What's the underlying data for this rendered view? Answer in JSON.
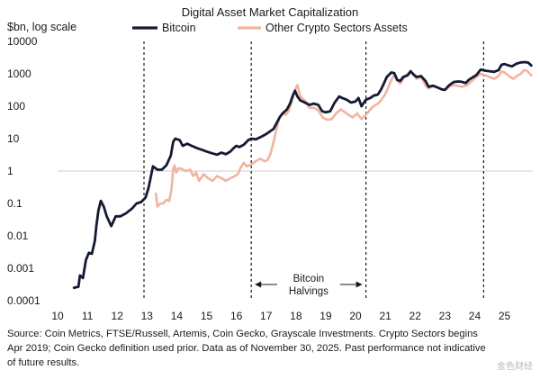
{
  "chart_data": {
    "type": "line",
    "title": "Digital Asset Market Capitalization",
    "ylabel": "$bn, log scale",
    "xlabel": "",
    "yscale": "log",
    "ylim": [
      0.0001,
      10000
    ],
    "xlim": [
      2010,
      2025.95
    ],
    "y_ticks": [
      {
        "value": 10000,
        "label": "10000"
      },
      {
        "value": 1000,
        "label": "1000"
      },
      {
        "value": 100,
        "label": "100"
      },
      {
        "value": 10,
        "label": "10"
      },
      {
        "value": 1,
        "label": "1"
      },
      {
        "value": 0.1,
        "label": "0.1"
      },
      {
        "value": 0.01,
        "label": "0.01"
      },
      {
        "value": 0.001,
        "label": "0.001"
      },
      {
        "value": 0.0001,
        "label": "0.0001"
      }
    ],
    "x_ticks": [
      {
        "value": 2010,
        "label": "10"
      },
      {
        "value": 2011,
        "label": "11"
      },
      {
        "value": 2012,
        "label": "12"
      },
      {
        "value": 2013,
        "label": "13"
      },
      {
        "value": 2014,
        "label": "14"
      },
      {
        "value": 2015,
        "label": "15"
      },
      {
        "value": 2016,
        "label": "16"
      },
      {
        "value": 2017,
        "label": "17"
      },
      {
        "value": 2018,
        "label": "18"
      },
      {
        "value": 2019,
        "label": "19"
      },
      {
        "value": 2020,
        "label": "20"
      },
      {
        "value": 2021,
        "label": "21"
      },
      {
        "value": 2022,
        "label": "22"
      },
      {
        "value": 2023,
        "label": "23"
      },
      {
        "value": 2024,
        "label": "24"
      },
      {
        "value": 2025,
        "label": "25"
      }
    ],
    "reference_line_y": 1,
    "halvings": [
      2012.9,
      2016.5,
      2020.35,
      2024.3
    ],
    "halving_label_lines": [
      "Bitcoin",
      "Halvings"
    ],
    "legend_position": "top-center",
    "series": [
      {
        "name": "Bitcoin",
        "color": "#141a33",
        "points": [
          [
            2010.55,
            0.00025
          ],
          [
            2010.7,
            0.00027
          ],
          [
            2010.75,
            0.0006
          ],
          [
            2010.85,
            0.0005
          ],
          [
            2010.95,
            0.0018
          ],
          [
            2011.05,
            0.003
          ],
          [
            2011.15,
            0.0028
          ],
          [
            2011.25,
            0.007
          ],
          [
            2011.3,
            0.02
          ],
          [
            2011.37,
            0.06
          ],
          [
            2011.45,
            0.12
          ],
          [
            2011.55,
            0.08
          ],
          [
            2011.65,
            0.04
          ],
          [
            2011.8,
            0.02
          ],
          [
            2011.95,
            0.04
          ],
          [
            2012.1,
            0.04
          ],
          [
            2012.3,
            0.05
          ],
          [
            2012.5,
            0.07
          ],
          [
            2012.65,
            0.1
          ],
          [
            2012.8,
            0.11
          ],
          [
            2012.95,
            0.15
          ],
          [
            2013.05,
            0.3
          ],
          [
            2013.12,
            0.6
          ],
          [
            2013.2,
            1.4
          ],
          [
            2013.35,
            1.1
          ],
          [
            2013.5,
            1.1
          ],
          [
            2013.65,
            1.5
          ],
          [
            2013.8,
            3
          ],
          [
            2013.88,
            8
          ],
          [
            2013.95,
            10
          ],
          [
            2014.1,
            9
          ],
          [
            2014.2,
            6
          ],
          [
            2014.35,
            7
          ],
          [
            2014.5,
            6
          ],
          [
            2014.7,
            5
          ],
          [
            2014.85,
            4.5
          ],
          [
            2015.0,
            4
          ],
          [
            2015.2,
            3.5
          ],
          [
            2015.35,
            3.2
          ],
          [
            2015.5,
            3.7
          ],
          [
            2015.65,
            3.3
          ],
          [
            2015.8,
            4
          ],
          [
            2015.9,
            5
          ],
          [
            2016.0,
            6
          ],
          [
            2016.1,
            5.5
          ],
          [
            2016.25,
            6.5
          ],
          [
            2016.4,
            9
          ],
          [
            2016.5,
            10
          ],
          [
            2016.65,
            9.5
          ],
          [
            2016.8,
            11
          ],
          [
            2016.95,
            13
          ],
          [
            2017.1,
            16
          ],
          [
            2017.25,
            20
          ],
          [
            2017.35,
            30
          ],
          [
            2017.45,
            45
          ],
          [
            2017.55,
            60
          ],
          [
            2017.7,
            80
          ],
          [
            2017.8,
            120
          ],
          [
            2017.9,
            220
          ],
          [
            2017.97,
            300
          ],
          [
            2018.05,
            200
          ],
          [
            2018.15,
            150
          ],
          [
            2018.3,
            130
          ],
          [
            2018.45,
            110
          ],
          [
            2018.6,
            120
          ],
          [
            2018.75,
            110
          ],
          [
            2018.88,
            70
          ],
          [
            2019.0,
            65
          ],
          [
            2019.15,
            70
          ],
          [
            2019.3,
            130
          ],
          [
            2019.45,
            200
          ],
          [
            2019.55,
            180
          ],
          [
            2019.7,
            160
          ],
          [
            2019.85,
            130
          ],
          [
            2020.0,
            140
          ],
          [
            2020.1,
            180
          ],
          [
            2020.2,
            100
          ],
          [
            2020.35,
            160
          ],
          [
            2020.5,
            180
          ],
          [
            2020.6,
            210
          ],
          [
            2020.75,
            230
          ],
          [
            2020.85,
            320
          ],
          [
            2020.95,
            500
          ],
          [
            2021.05,
            800
          ],
          [
            2021.2,
            1100
          ],
          [
            2021.3,
            1050
          ],
          [
            2021.4,
            650
          ],
          [
            2021.5,
            600
          ],
          [
            2021.6,
            800
          ],
          [
            2021.75,
            900
          ],
          [
            2021.85,
            1200
          ],
          [
            2021.95,
            950
          ],
          [
            2022.05,
            800
          ],
          [
            2022.2,
            850
          ],
          [
            2022.35,
            600
          ],
          [
            2022.45,
            400
          ],
          [
            2022.6,
            430
          ],
          [
            2022.75,
            380
          ],
          [
            2022.9,
            330
          ],
          [
            2023.0,
            320
          ],
          [
            2023.15,
            450
          ],
          [
            2023.3,
            560
          ],
          [
            2023.45,
            580
          ],
          [
            2023.55,
            570
          ],
          [
            2023.7,
            520
          ],
          [
            2023.8,
            650
          ],
          [
            2023.95,
            800
          ],
          [
            2024.05,
            900
          ],
          [
            2024.2,
            1350
          ],
          [
            2024.35,
            1250
          ],
          [
            2024.5,
            1200
          ],
          [
            2024.65,
            1150
          ],
          [
            2024.8,
            1300
          ],
          [
            2024.9,
            1900
          ],
          [
            2025.0,
            2000
          ],
          [
            2025.15,
            1800
          ],
          [
            2025.25,
            1700
          ],
          [
            2025.4,
            2050
          ],
          [
            2025.55,
            2250
          ],
          [
            2025.7,
            2300
          ],
          [
            2025.8,
            2200
          ],
          [
            2025.9,
            1800
          ]
        ]
      },
      {
        "name": "Other Crypto Sectors Assets",
        "color": "#f0b49f",
        "points": [
          [
            2013.3,
            0.2
          ],
          [
            2013.35,
            0.08
          ],
          [
            2013.45,
            0.1
          ],
          [
            2013.55,
            0.1
          ],
          [
            2013.65,
            0.13
          ],
          [
            2013.75,
            0.12
          ],
          [
            2013.83,
            0.3
          ],
          [
            2013.88,
            1.2
          ],
          [
            2013.93,
            1.5
          ],
          [
            2013.98,
            0.9
          ],
          [
            2014.05,
            1.2
          ],
          [
            2014.15,
            1.2
          ],
          [
            2014.3,
            1.0
          ],
          [
            2014.45,
            1.1
          ],
          [
            2014.55,
            0.7
          ],
          [
            2014.65,
            0.9
          ],
          [
            2014.75,
            0.5
          ],
          [
            2014.9,
            0.8
          ],
          [
            2015.05,
            0.6
          ],
          [
            2015.2,
            0.5
          ],
          [
            2015.35,
            0.7
          ],
          [
            2015.5,
            0.6
          ],
          [
            2015.65,
            0.5
          ],
          [
            2015.8,
            0.6
          ],
          [
            2015.95,
            0.7
          ],
          [
            2016.05,
            0.8
          ],
          [
            2016.15,
            1.3
          ],
          [
            2016.25,
            1.8
          ],
          [
            2016.35,
            1.4
          ],
          [
            2016.5,
            1.6
          ],
          [
            2016.65,
            2.0
          ],
          [
            2016.8,
            2.4
          ],
          [
            2016.95,
            2.0
          ],
          [
            2017.05,
            2.2
          ],
          [
            2017.15,
            3.5
          ],
          [
            2017.25,
            8
          ],
          [
            2017.35,
            20
          ],
          [
            2017.45,
            45
          ],
          [
            2017.55,
            60
          ],
          [
            2017.65,
            55
          ],
          [
            2017.75,
            70
          ],
          [
            2017.85,
            130
          ],
          [
            2017.97,
            320
          ],
          [
            2018.05,
            450
          ],
          [
            2018.15,
            200
          ],
          [
            2018.3,
            150
          ],
          [
            2018.45,
            90
          ],
          [
            2018.6,
            90
          ],
          [
            2018.75,
            75
          ],
          [
            2018.9,
            45
          ],
          [
            2019.05,
            38
          ],
          [
            2019.2,
            40
          ],
          [
            2019.35,
            60
          ],
          [
            2019.5,
            80
          ],
          [
            2019.6,
            70
          ],
          [
            2019.75,
            55
          ],
          [
            2019.9,
            45
          ],
          [
            2020.05,
            60
          ],
          [
            2020.2,
            40
          ],
          [
            2020.35,
            55
          ],
          [
            2020.5,
            80
          ],
          [
            2020.6,
            100
          ],
          [
            2020.75,
            120
          ],
          [
            2020.85,
            150
          ],
          [
            2020.95,
            200
          ],
          [
            2021.05,
            300
          ],
          [
            2021.2,
            650
          ],
          [
            2021.3,
            900
          ],
          [
            2021.4,
            600
          ],
          [
            2021.5,
            500
          ],
          [
            2021.6,
            700
          ],
          [
            2021.75,
            1000
          ],
          [
            2021.85,
            1200
          ],
          [
            2021.95,
            900
          ],
          [
            2022.05,
            700
          ],
          [
            2022.2,
            800
          ],
          [
            2022.35,
            450
          ],
          [
            2022.45,
            350
          ],
          [
            2022.6,
            420
          ],
          [
            2022.75,
            370
          ],
          [
            2022.9,
            330
          ],
          [
            2023.0,
            320
          ],
          [
            2023.15,
            400
          ],
          [
            2023.3,
            450
          ],
          [
            2023.45,
            420
          ],
          [
            2023.6,
            400
          ],
          [
            2023.75,
            450
          ],
          [
            2023.9,
            600
          ],
          [
            2024.05,
            800
          ],
          [
            2024.2,
            1000
          ],
          [
            2024.35,
            900
          ],
          [
            2024.5,
            800
          ],
          [
            2024.65,
            700
          ],
          [
            2024.8,
            850
          ],
          [
            2024.9,
            1200
          ],
          [
            2025.0,
            1100
          ],
          [
            2025.15,
            850
          ],
          [
            2025.3,
            700
          ],
          [
            2025.45,
            900
          ],
          [
            2025.55,
            1000
          ],
          [
            2025.65,
            1300
          ],
          [
            2025.75,
            1250
          ],
          [
            2025.85,
            1000
          ],
          [
            2025.9,
            900
          ]
        ]
      }
    ]
  },
  "footnote_lines": [
    "Source: Coin Metrics, FTSE/Russell, Artemis, Coin Gecko, Grayscale Investments. Crypto Sectors begins",
    "Apr 2019; Coin Gecko definition used prior. Data as of November 30, 2025. Past performance not indicative",
    "of future results."
  ],
  "watermark": "金色财经"
}
